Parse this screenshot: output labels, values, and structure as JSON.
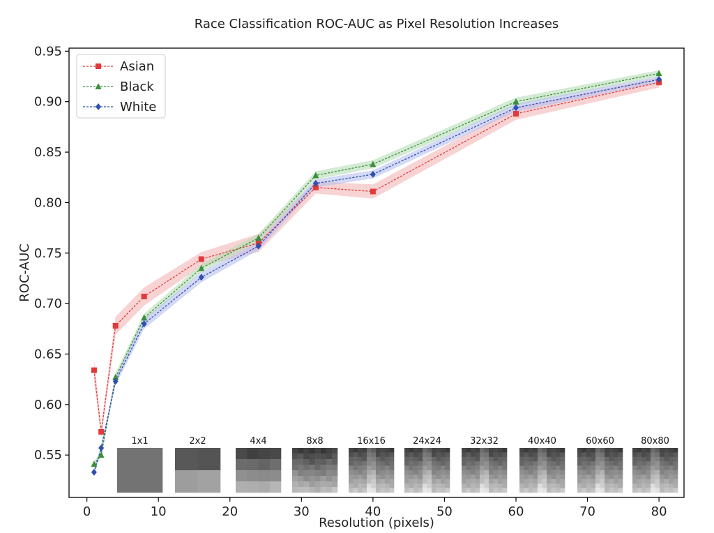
{
  "chart_data": {
    "type": "line",
    "title": "Race Classification ROC-AUC as Pixel Resolution Increases",
    "xlabel": "Resolution (pixels)",
    "ylabel": "ROC-AUC",
    "xlim": [
      -2.5,
      83.5
    ],
    "ylim": [
      0.508,
      0.953
    ],
    "xticks": [
      0,
      10,
      20,
      30,
      40,
      50,
      60,
      70,
      80
    ],
    "yticks": [
      0.55,
      0.6,
      0.65,
      0.7,
      0.75,
      0.8,
      0.85,
      0.9,
      0.95
    ],
    "ytick_labels": [
      "0.55",
      "0.60",
      "0.65",
      "0.70",
      "0.75",
      "0.80",
      "0.85",
      "0.90",
      "0.95"
    ],
    "grid": false,
    "legend_position": "top-left",
    "x": [
      1,
      2,
      4,
      8,
      16,
      24,
      32,
      40,
      60,
      80
    ],
    "series": [
      {
        "name": "Asian",
        "color": "#e03a3a",
        "band": "#f4b6b6",
        "marker": "square",
        "values": [
          0.634,
          0.573,
          0.678,
          0.707,
          0.744,
          0.76,
          0.815,
          0.811,
          0.888,
          0.919
        ],
        "ci": [
          0.011,
          0.006,
          0.009,
          0.009,
          0.007,
          0.009,
          0.006,
          0.007,
          0.006,
          0.005
        ]
      },
      {
        "name": "Black",
        "color": "#3a8f3a",
        "band": "#b6dcb6",
        "marker": "triangle",
        "values": [
          0.541,
          0.55,
          0.627,
          0.686,
          0.735,
          0.765,
          0.827,
          0.838,
          0.9,
          0.928
        ],
        "ci": [
          0.003,
          0.003,
          0.004,
          0.004,
          0.004,
          0.004,
          0.004,
          0.004,
          0.004,
          0.003
        ]
      },
      {
        "name": "White",
        "color": "#2f4fb0",
        "band": "#b7bff0",
        "marker": "diamond",
        "values": [
          0.533,
          0.557,
          0.623,
          0.68,
          0.726,
          0.757,
          0.819,
          0.828,
          0.894,
          0.922
        ],
        "ci": [
          0.003,
          0.003,
          0.004,
          0.005,
          0.005,
          0.004,
          0.004,
          0.004,
          0.004,
          0.003
        ]
      }
    ],
    "thumbnails": [
      {
        "label": "1x1",
        "grid": 1
      },
      {
        "label": "2x2",
        "grid": 2
      },
      {
        "label": "4x4",
        "grid": 4
      },
      {
        "label": "8x8",
        "grid": 8
      },
      {
        "label": "16x16",
        "grid": 16
      },
      {
        "label": "24x24",
        "grid": 24
      },
      {
        "label": "32x32",
        "grid": 32
      },
      {
        "label": "40x40",
        "grid": 40
      },
      {
        "label": "60x60",
        "grid": 60
      },
      {
        "label": "80x80",
        "grid": 80
      }
    ]
  }
}
